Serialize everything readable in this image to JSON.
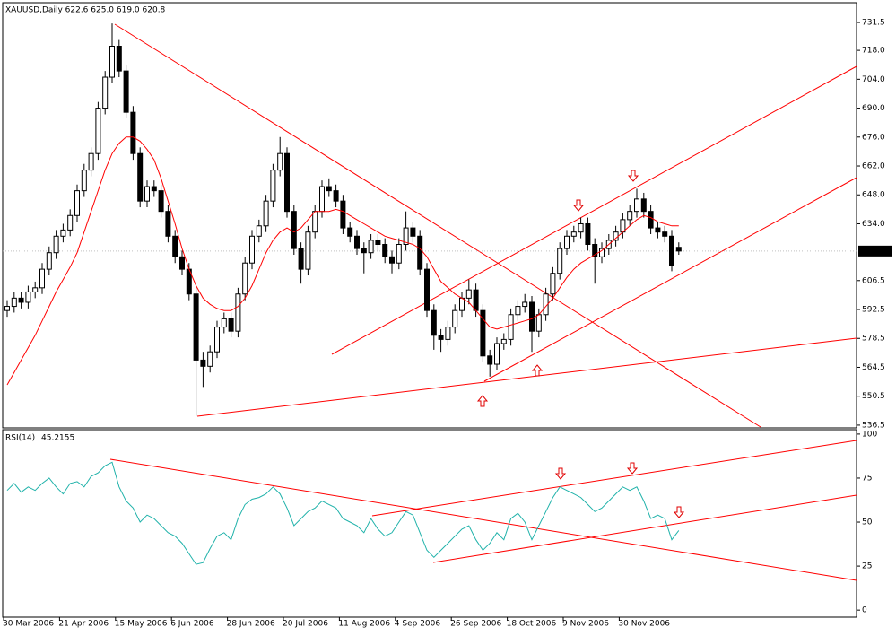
{
  "chart_data": [
    {
      "type": "candlestick",
      "title": "XAUUSD,Daily  622.6 625.0 619.0 620.8",
      "categories": [
        "30 Mar 2006",
        null,
        null,
        null,
        null,
        null,
        null,
        null,
        "21 Apr 2006",
        null,
        null,
        null,
        null,
        null,
        null,
        null,
        "15 May 2006",
        null,
        null,
        null,
        null,
        null,
        null,
        null,
        "6 Jun 2006",
        null,
        null,
        null,
        null,
        null,
        null,
        null,
        "28 Jun 2006",
        null,
        null,
        null,
        null,
        null,
        null,
        null,
        "20 Jul 2006",
        null,
        null,
        null,
        null,
        null,
        null,
        null,
        "11 Aug 2006",
        null,
        null,
        null,
        null,
        null,
        null,
        null,
        "4 Sep 2006",
        null,
        null,
        null,
        null,
        null,
        null,
        null,
        "26 Sep 2006",
        null,
        null,
        null,
        null,
        null,
        null,
        null,
        "18 Oct 2006",
        null,
        null,
        null,
        null,
        null,
        null,
        null,
        "9 Nov 2006",
        null,
        null,
        null,
        null,
        null,
        null,
        null,
        "30 Nov 2006",
        null,
        null,
        null,
        null,
        null,
        null,
        null,
        null
      ],
      "ohlc": [
        [
          592,
          597,
          589,
          594
        ],
        [
          594,
          601,
          591,
          598
        ],
        [
          598,
          601,
          593,
          596
        ],
        [
          596,
          604,
          593,
          601
        ],
        [
          601,
          606,
          598,
          603
        ],
        [
          603,
          615,
          600,
          612
        ],
        [
          612,
          623,
          609,
          620
        ],
        [
          620,
          631,
          617,
          628
        ],
        [
          628,
          634,
          625,
          631
        ],
        [
          631,
          641,
          628,
          638
        ],
        [
          638,
          653,
          635,
          650
        ],
        [
          650,
          663,
          647,
          660
        ],
        [
          660,
          671,
          657,
          668
        ],
        [
          668,
          693,
          665,
          690
        ],
        [
          690,
          708,
          687,
          705
        ],
        [
          705,
          731,
          702,
          720
        ],
        [
          720,
          723,
          705,
          708
        ],
        [
          708,
          711,
          685,
          688
        ],
        [
          688,
          691,
          665,
          668
        ],
        [
          668,
          671,
          642,
          645
        ],
        [
          645,
          655,
          642,
          652
        ],
        [
          652,
          655,
          647,
          650
        ],
        [
          650,
          653,
          637,
          640
        ],
        [
          640,
          643,
          625,
          628
        ],
        [
          628,
          631,
          615,
          618
        ],
        [
          618,
          621,
          609,
          612
        ],
        [
          612,
          615,
          597,
          600
        ],
        [
          600,
          603,
          541,
          568
        ],
        [
          568,
          572,
          555,
          565
        ],
        [
          565,
          575,
          562,
          572
        ],
        [
          572,
          587,
          569,
          584
        ],
        [
          584,
          591,
          581,
          588
        ],
        [
          588,
          591,
          579,
          582
        ],
        [
          582,
          603,
          579,
          600
        ],
        [
          600,
          618,
          597,
          615
        ],
        [
          615,
          631,
          612,
          628
        ],
        [
          628,
          636,
          625,
          633
        ],
        [
          633,
          648,
          630,
          645
        ],
        [
          645,
          663,
          642,
          660
        ],
        [
          660,
          676,
          657,
          668
        ],
        [
          668,
          671,
          637,
          640
        ],
        [
          640,
          643,
          619,
          622
        ],
        [
          622,
          625,
          605,
          612
        ],
        [
          612,
          633,
          609,
          630
        ],
        [
          630,
          643,
          627,
          640
        ],
        [
          640,
          655,
          637,
          652
        ],
        [
          652,
          656,
          647,
          650
        ],
        [
          650,
          653,
          642,
          645
        ],
        [
          645,
          648,
          629,
          632
        ],
        [
          632,
          635,
          625,
          628
        ],
        [
          628,
          631,
          619,
          622
        ],
        [
          622,
          625,
          610,
          620
        ],
        [
          620,
          629,
          617,
          626
        ],
        [
          626,
          629,
          621,
          624
        ],
        [
          624,
          627,
          615,
          618
        ],
        [
          618,
          621,
          610,
          615
        ],
        [
          615,
          627,
          612,
          624
        ],
        [
          624,
          640,
          621,
          632
        ],
        [
          632,
          635,
          625,
          628
        ],
        [
          628,
          631,
          609,
          612
        ],
        [
          612,
          615,
          589,
          592
        ],
        [
          592,
          595,
          573,
          580
        ],
        [
          580,
          583,
          572,
          578
        ],
        [
          578,
          587,
          575,
          584
        ],
        [
          584,
          595,
          581,
          592
        ],
        [
          592,
          601,
          589,
          598
        ],
        [
          598,
          607,
          595,
          602
        ],
        [
          602,
          605,
          589,
          592
        ],
        [
          592,
          595,
          567,
          570
        ],
        [
          570,
          573,
          560,
          566
        ],
        [
          566,
          579,
          563,
          576
        ],
        [
          576,
          581,
          573,
          578
        ],
        [
          578,
          593,
          575,
          590
        ],
        [
          590,
          597,
          587,
          594
        ],
        [
          594,
          600,
          591,
          596
        ],
        [
          596,
          599,
          572,
          582
        ],
        [
          582,
          593,
          579,
          590
        ],
        [
          590,
          603,
          587,
          600
        ],
        [
          600,
          613,
          597,
          610
        ],
        [
          610,
          625,
          607,
          622
        ],
        [
          622,
          631,
          619,
          628
        ],
        [
          628,
          633,
          625,
          630
        ],
        [
          630,
          637,
          627,
          634
        ],
        [
          634,
          637,
          621,
          624
        ],
        [
          624,
          627,
          605,
          618
        ],
        [
          618,
          625,
          615,
          622
        ],
        [
          622,
          629,
          619,
          626
        ],
        [
          626,
          633,
          623,
          630
        ],
        [
          630,
          639,
          627,
          636
        ],
        [
          636,
          643,
          633,
          640
        ],
        [
          640,
          651,
          637,
          646
        ],
        [
          646,
          649,
          637,
          640
        ],
        [
          640,
          643,
          629,
          632
        ],
        [
          632,
          635,
          627,
          630
        ],
        [
          630,
          633,
          625,
          628
        ],
        [
          628,
          631,
          611,
          614
        ],
        [
          622.6,
          625.0,
          619.0,
          620.8
        ]
      ],
      "candle_color": "#000000",
      "ma": {
        "color": "#ff0000",
        "values": [
          556,
          562,
          568,
          574,
          580,
          587,
          594,
          601,
          607,
          613,
          620,
          630,
          640,
          650,
          660,
          668,
          673,
          676,
          676,
          674,
          670,
          665,
          656,
          645,
          634,
          622,
          612,
          604,
          598,
          595,
          593,
          592,
          592,
          594,
          598,
          604,
          612,
          620,
          626,
          630,
          632,
          630,
          632,
          636,
          640,
          640,
          640,
          641,
          640,
          638,
          636,
          634,
          632,
          630,
          628,
          627,
          626,
          625,
          624,
          622,
          618,
          612,
          606,
          603,
          600,
          598,
          596,
          592,
          588,
          584,
          583,
          584,
          585,
          586,
          587,
          588,
          590,
          594,
          598,
          603,
          608,
          612,
          615,
          617,
          619,
          621,
          624,
          627,
          630,
          633,
          636,
          638,
          637,
          635,
          634,
          633,
          633
        ]
      },
      "ylim": [
        535.6,
        740.2
      ],
      "yticks": [
        {
          "value": 731.5,
          "label": "731.5"
        },
        {
          "value": 718,
          "label": "718.0"
        },
        {
          "value": 704,
          "label": "704.0"
        },
        {
          "value": 690,
          "label": "690.0"
        },
        {
          "value": 676,
          "label": "676.0"
        },
        {
          "value": 662,
          "label": "662.0"
        },
        {
          "value": 648,
          "label": "648.0"
        },
        {
          "value": 634,
          "label": "634.0"
        },
        {
          "value": 606.5,
          "label": "606.5"
        },
        {
          "value": 592.5,
          "label": "592.5"
        },
        {
          "value": 578.5,
          "label": "578.5"
        },
        {
          "value": 564.5,
          "label": "564.5"
        },
        {
          "value": 550.5,
          "label": "550.5"
        },
        {
          "value": 536.5,
          "label": "536.5"
        }
      ],
      "current_price": 620.8
    },
    {
      "type": "line",
      "title": "RSI(14)",
      "series": [
        {
          "color": "#20b2aa",
          "values": [
            68,
            72,
            67,
            70,
            68,
            72,
            75,
            70,
            66,
            72,
            73,
            70,
            76,
            78,
            82,
            84,
            70,
            62,
            58,
            50,
            54,
            52,
            48,
            44,
            42,
            38,
            32,
            26,
            27,
            35,
            42,
            44,
            40,
            52,
            60,
            63,
            64,
            66,
            70,
            66,
            58,
            48,
            52,
            56,
            58,
            62,
            60,
            58,
            52,
            50,
            48,
            44,
            52,
            46,
            42,
            44,
            50,
            56,
            54,
            44,
            34,
            30,
            34,
            38,
            42,
            46,
            48,
            40,
            34,
            38,
            44,
            40,
            52,
            55,
            50,
            40,
            48,
            56,
            64,
            70,
            68,
            66,
            64,
            60,
            56,
            58,
            62,
            66,
            70,
            68,
            70,
            62,
            52,
            54,
            52,
            40,
            45.2155
          ]
        }
      ],
      "ylim": [
        -4,
        102.5
      ],
      "yticks": [
        100,
        75,
        50,
        25,
        0
      ]
    }
  ]
}
